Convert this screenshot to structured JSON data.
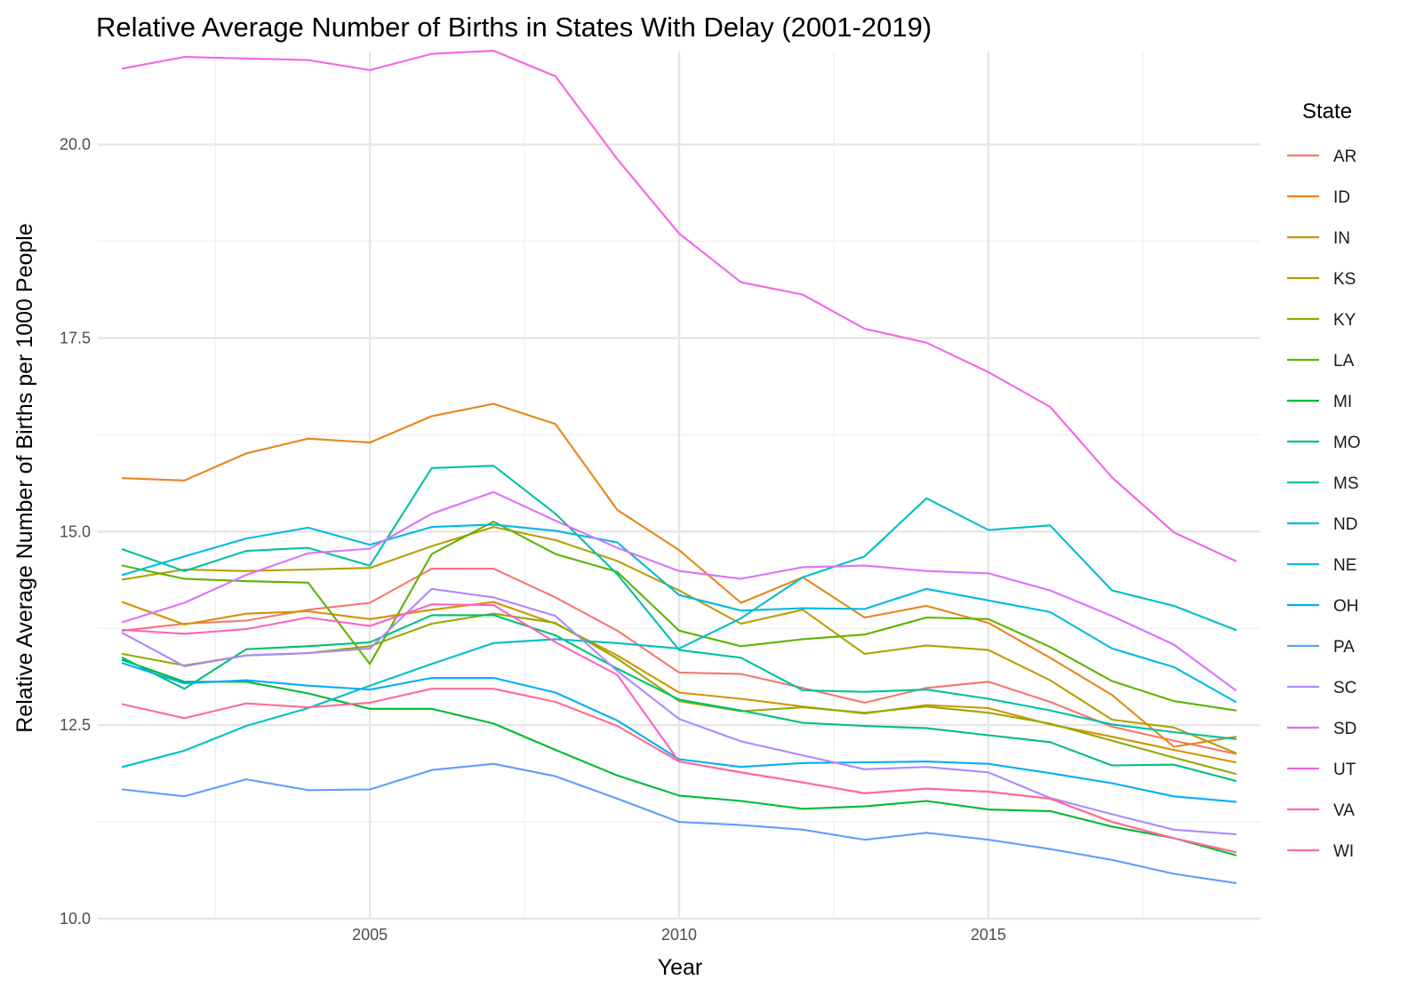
{
  "chart_data": {
    "type": "line",
    "title": "Relative Average Number of Births in States With Delay (2001-2019)",
    "xlabel": "Year",
    "ylabel": "Relative Average Number of Births per 1000 People",
    "xlim": [
      2000.6,
      2019.4
    ],
    "ylim": [
      10.0,
      21.2
    ],
    "x_ticks": [
      2005,
      2010,
      2015
    ],
    "x_tick_labels": [
      "2005",
      "2010",
      "2015"
    ],
    "x_minor_ticks": [
      2002.5,
      2007.5,
      2012.5,
      2017.5
    ],
    "y_ticks": [
      10.0,
      12.5,
      15.0,
      17.5,
      20.0
    ],
    "y_tick_labels": [
      "10.0",
      "12.5",
      "15.0",
      "17.5",
      "20.0"
    ],
    "y_minor_ticks": [
      11.25,
      13.75,
      16.25,
      18.75
    ],
    "grid": true,
    "legend_title": "State",
    "legend_position": "right",
    "x": [
      2001,
      2002,
      2003,
      2004,
      2005,
      2006,
      2007,
      2008,
      2009,
      2010,
      2011,
      2012,
      2013,
      2014,
      2015,
      2016,
      2017,
      2018,
      2019
    ],
    "series": [
      {
        "name": "AR",
        "color": "#F8766D",
        "values": [
          13.72,
          13.81,
          13.85,
          13.99,
          14.08,
          14.52,
          14.52,
          14.15,
          13.72,
          13.18,
          13.16,
          12.98,
          12.79,
          12.98,
          13.06,
          12.8,
          12.48,
          12.3,
          12.13
        ]
      },
      {
        "name": "ID",
        "color": "#E7861B",
        "values": [
          15.69,
          15.66,
          16.01,
          16.2,
          16.15,
          16.49,
          16.65,
          16.39,
          15.28,
          14.76,
          14.08,
          14.41,
          13.89,
          14.04,
          13.82,
          13.37,
          12.89,
          12.22,
          12.35
        ]
      },
      {
        "name": "IN",
        "color": "#D39200",
        "values": [
          14.09,
          13.8,
          13.94,
          13.97,
          13.87,
          13.99,
          14.09,
          13.81,
          13.4,
          12.92,
          12.84,
          12.74,
          12.65,
          12.76,
          12.72,
          12.51,
          12.35,
          12.18,
          12.02
        ]
      },
      {
        "name": "KS",
        "color": "#B79F00",
        "values": [
          14.38,
          14.51,
          14.49,
          14.51,
          14.53,
          14.81,
          15.06,
          14.89,
          14.62,
          14.24,
          13.81,
          13.99,
          13.42,
          13.53,
          13.47,
          13.08,
          12.57,
          12.47,
          12.14
        ]
      },
      {
        "name": "KY",
        "color": "#93AA00",
        "values": [
          13.42,
          13.27,
          13.4,
          13.43,
          13.52,
          13.81,
          13.94,
          13.82,
          13.36,
          12.81,
          12.68,
          12.73,
          12.66,
          12.74,
          12.66,
          12.52,
          12.3,
          12.08,
          11.87
        ]
      },
      {
        "name": "LA",
        "color": "#5EB300",
        "values": [
          14.56,
          14.39,
          14.36,
          14.34,
          13.29,
          14.71,
          15.13,
          14.71,
          14.48,
          13.72,
          13.52,
          13.61,
          13.67,
          13.89,
          13.87,
          13.51,
          13.07,
          12.81,
          12.69
        ]
      },
      {
        "name": "MI",
        "color": "#00BA38",
        "values": [
          13.34,
          13.06,
          13.06,
          12.91,
          12.71,
          12.71,
          12.52,
          12.18,
          11.85,
          11.59,
          11.52,
          11.42,
          11.45,
          11.52,
          11.41,
          11.39,
          11.19,
          11.04,
          10.82
        ]
      },
      {
        "name": "MO",
        "color": "#00BF74",
        "values": [
          13.37,
          12.97,
          13.48,
          13.52,
          13.57,
          13.92,
          13.92,
          13.66,
          13.23,
          12.83,
          12.69,
          12.53,
          12.49,
          12.46,
          12.37,
          12.28,
          11.98,
          11.99,
          11.78
        ]
      },
      {
        "name": "MS",
        "color": "#00C19F",
        "values": [
          14.77,
          14.49,
          14.75,
          14.79,
          14.56,
          15.82,
          15.85,
          15.23,
          14.45,
          13.47,
          13.37,
          12.95,
          12.93,
          12.96,
          12.84,
          12.69,
          12.51,
          12.41,
          12.32
        ]
      },
      {
        "name": "ND",
        "color": "#00BFC4",
        "values": [
          11.96,
          12.17,
          12.49,
          12.72,
          13.01,
          13.29,
          13.56,
          13.61,
          13.56,
          13.49,
          13.88,
          14.41,
          14.68,
          15.43,
          15.02,
          15.08,
          14.24,
          14.04,
          13.73
        ]
      },
      {
        "name": "NE",
        "color": "#00B9E3",
        "values": [
          14.44,
          14.68,
          14.91,
          15.05,
          14.83,
          15.06,
          15.09,
          15.01,
          14.86,
          14.18,
          13.98,
          14.01,
          14.0,
          14.26,
          14.11,
          13.96,
          13.49,
          13.25,
          12.8
        ]
      },
      {
        "name": "OH",
        "color": "#00ADFA",
        "values": [
          13.3,
          13.04,
          13.08,
          13.01,
          12.96,
          13.11,
          13.11,
          12.92,
          12.56,
          12.06,
          11.96,
          12.01,
          12.02,
          12.03,
          12.0,
          11.88,
          11.75,
          11.58,
          11.51
        ]
      },
      {
        "name": "PA",
        "color": "#619CFF",
        "values": [
          11.67,
          11.58,
          11.8,
          11.66,
          11.67,
          11.92,
          12.0,
          11.84,
          11.55,
          11.25,
          11.21,
          11.15,
          11.02,
          11.11,
          11.02,
          10.9,
          10.76,
          10.58,
          10.46
        ]
      },
      {
        "name": "SC",
        "color": "#AE87FF",
        "values": [
          13.69,
          13.26,
          13.4,
          13.43,
          13.49,
          14.26,
          14.15,
          13.91,
          13.2,
          12.58,
          12.29,
          12.11,
          11.93,
          11.96,
          11.89,
          11.56,
          11.35,
          11.15,
          11.09
        ]
      },
      {
        "name": "SD",
        "color": "#DB72FB",
        "values": [
          13.83,
          14.08,
          14.44,
          14.72,
          14.78,
          15.23,
          15.51,
          15.14,
          14.79,
          14.49,
          14.39,
          14.54,
          14.56,
          14.49,
          14.46,
          14.24,
          13.91,
          13.54,
          12.95
        ]
      },
      {
        "name": "UT",
        "color": "#F564E3",
        "values": [
          20.98,
          21.13,
          21.11,
          21.09,
          20.96,
          21.17,
          21.21,
          20.88,
          19.81,
          18.85,
          18.22,
          18.06,
          17.62,
          17.44,
          17.06,
          16.61,
          15.7,
          14.99,
          14.62
        ]
      },
      {
        "name": "VA",
        "color": "#FF61C3",
        "values": [
          13.73,
          13.68,
          13.74,
          13.89,
          13.78,
          14.06,
          14.05,
          13.57,
          13.15,
          12.03,
          11.89,
          11.76,
          11.62,
          11.68,
          11.64,
          11.55,
          11.25,
          11.04,
          10.86
        ]
      },
      {
        "name": "WI",
        "color": "#FF6C91",
        "values": [
          12.77,
          12.59,
          12.78,
          12.73,
          12.79,
          12.97,
          12.97,
          12.8,
          12.49,
          12.03,
          11.89,
          11.76,
          11.62,
          11.68,
          11.64,
          11.55,
          11.25,
          11.04,
          10.86
        ]
      }
    ]
  }
}
